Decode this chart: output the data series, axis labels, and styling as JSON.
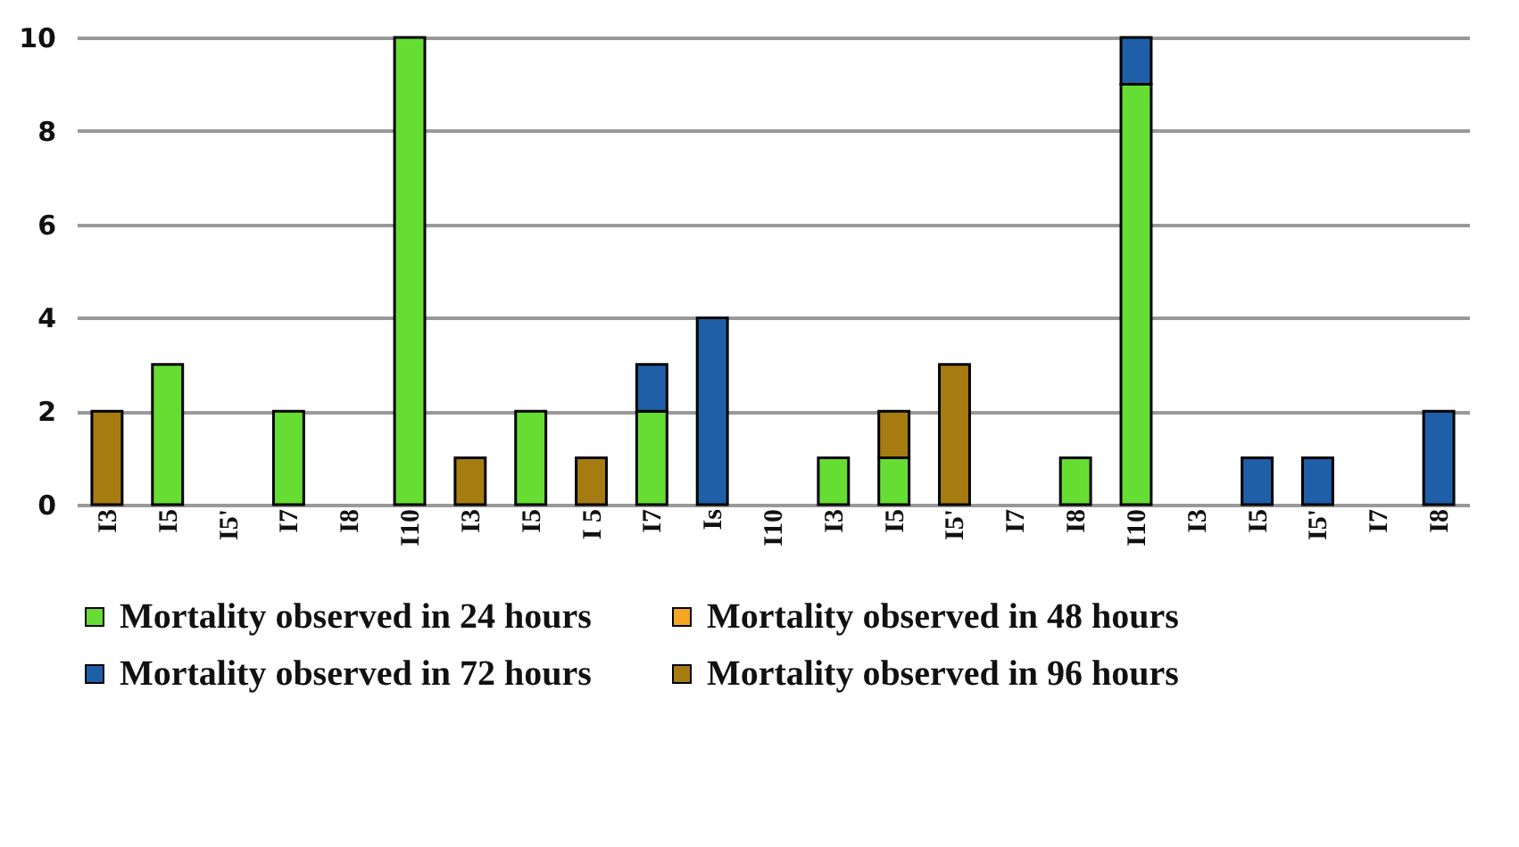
{
  "chart_data": {
    "type": "bar",
    "stacked": true,
    "categories": [
      "I3",
      "I5",
      "I5'",
      "I7",
      "I8",
      "I10",
      "I3",
      "I5",
      "I 5",
      "I7",
      "Is",
      "I10",
      "I3",
      "I5",
      "I5'",
      "I7",
      "I8",
      "I10",
      "I3",
      "I5",
      "I5'",
      "I7",
      "I8"
    ],
    "series": [
      {
        "name": "Mortality observed in 24 hours",
        "color": "#66dd33",
        "values": [
          null,
          3,
          null,
          2,
          null,
          10,
          null,
          2,
          null,
          2,
          null,
          null,
          1,
          1,
          null,
          null,
          1,
          9,
          null,
          null,
          null,
          null,
          null
        ]
      },
      {
        "name": "Mortality observed in 48 hours",
        "color": "#f5a623",
        "values": [
          null,
          null,
          null,
          null,
          null,
          null,
          null,
          null,
          null,
          null,
          null,
          null,
          null,
          null,
          null,
          null,
          null,
          null,
          null,
          null,
          null,
          null,
          null
        ]
      },
      {
        "name": "Mortality observed in 72 hours",
        "color": "#1f5fa8",
        "values": [
          null,
          null,
          null,
          null,
          null,
          null,
          null,
          null,
          null,
          1,
          4,
          null,
          null,
          null,
          null,
          null,
          null,
          1,
          null,
          1,
          1,
          null,
          2
        ]
      },
      {
        "name": "Mortality observed in 96 hours",
        "color": "#a67c10",
        "values": [
          2,
          null,
          null,
          null,
          null,
          null,
          1,
          null,
          1,
          null,
          null,
          null,
          null,
          1,
          3,
          null,
          null,
          null,
          null,
          null,
          null,
          null,
          null
        ]
      }
    ],
    "ylim": [
      0,
      10
    ],
    "yticks": [
      0,
      2,
      4,
      6,
      8,
      10
    ],
    "grid": "y",
    "legend": "bottom"
  }
}
